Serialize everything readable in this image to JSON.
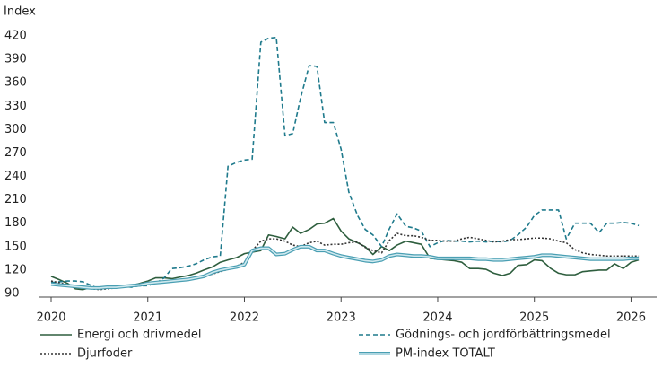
{
  "chart_data": {
    "type": "line",
    "y_label": "Index",
    "xlim": [
      2020,
      2026.2
    ],
    "xticks": [
      2020,
      2021,
      2022,
      2023,
      2024,
      2025,
      2026
    ],
    "ylim": [
      90,
      420
    ],
    "yticks": [
      90,
      120,
      150,
      180,
      210,
      240,
      270,
      300,
      330,
      360,
      390,
      420
    ],
    "grid": false,
    "legend": "bottom",
    "x": [
      2020,
      2020.08,
      2020.17,
      2020.25,
      2020.33,
      2020.42,
      2020.5,
      2020.58,
      2020.67,
      2020.75,
      2020.83,
      2020.92,
      2021,
      2021.08,
      2021.17,
      2021.25,
      2021.33,
      2021.42,
      2021.5,
      2021.58,
      2021.67,
      2021.75,
      2021.83,
      2021.92,
      2022,
      2022.08,
      2022.17,
      2022.25,
      2022.33,
      2022.42,
      2022.5,
      2022.58,
      2022.67,
      2022.75,
      2022.83,
      2022.92,
      2023,
      2023.08,
      2023.17,
      2023.25,
      2023.33,
      2023.42,
      2023.5,
      2023.58,
      2023.67,
      2023.75,
      2023.83,
      2023.92,
      2024,
      2024.08,
      2024.17,
      2024.25,
      2024.33,
      2024.42,
      2024.5,
      2024.58,
      2024.67,
      2024.75,
      2024.83,
      2024.92,
      2025,
      2025.08,
      2025.17,
      2025.25,
      2025.33,
      2025.42,
      2025.5,
      2025.58,
      2025.67,
      2025.75,
      2025.83,
      2025.92,
      2026,
      2026.08
    ],
    "series": [
      {
        "name": "Energi och drivmedel",
        "color": "#2e5e3e",
        "dash": "solid",
        "values": [
          112,
          108,
          103,
          96,
          95,
          98,
          97,
          98,
          97,
          99,
          100,
          103,
          106,
          110,
          110,
          109,
          111,
          113,
          116,
          120,
          124,
          130,
          133,
          136,
          141,
          143,
          145,
          165,
          163,
          160,
          175,
          167,
          172,
          179,
          180,
          186,
          170,
          160,
          155,
          150,
          140,
          150,
          145,
          152,
          157,
          155,
          153,
          135,
          134,
          133,
          132,
          130,
          122,
          122,
          121,
          116,
          113,
          116,
          126,
          127,
          133,
          132,
          122,
          116,
          114,
          114,
          118,
          119,
          120,
          120,
          128,
          122,
          130,
          133
        ]
      },
      {
        "name": "Gödnings- och jordförbättringsmedel",
        "color": "#1f7a8c",
        "dash": "dashed",
        "values": [
          104,
          105,
          106,
          106,
          105,
          100,
          96,
          97,
          98,
          99,
          98,
          100,
          100,
          103,
          110,
          122,
          123,
          125,
          128,
          133,
          137,
          138,
          253,
          258,
          261,
          262,
          412,
          417,
          418,
          292,
          295,
          340,
          382,
          381,
          309,
          309,
          275,
          220,
          190,
          172,
          165,
          150,
          173,
          192,
          176,
          174,
          170,
          150,
          155,
          158,
          157,
          157,
          156,
          157,
          156,
          157,
          156,
          158,
          165,
          175,
          190,
          197,
          197,
          197,
          160,
          180,
          180,
          180,
          168,
          180,
          180,
          181,
          180,
          177
        ]
      },
      {
        "name": "Djurfoder",
        "color": "#333333",
        "dash": "dotted",
        "values": [
          106,
          104,
          101,
          100,
          98,
          96,
          95,
          96,
          97,
          98,
          99,
          100,
          103,
          104,
          105,
          106,
          107,
          108,
          110,
          112,
          115,
          118,
          121,
          125,
          130,
          145,
          157,
          160,
          160,
          157,
          152,
          150,
          155,
          157,
          152,
          153,
          153,
          155,
          156,
          149,
          145,
          142,
          158,
          167,
          164,
          164,
          162,
          158,
          158,
          157,
          157,
          160,
          162,
          160,
          158,
          156,
          157,
          159,
          159,
          160,
          161,
          161,
          160,
          157,
          155,
          146,
          142,
          140,
          139,
          138,
          138,
          138,
          138,
          138
        ]
      },
      {
        "name": "PM-index TOTALT",
        "color": "#4a9fb3",
        "dash": "double",
        "values": [
          102,
          101,
          100,
          99,
          98,
          97,
          97,
          98,
          98,
          99,
          100,
          101,
          103,
          104,
          105,
          106,
          107,
          108,
          110,
          112,
          117,
          120,
          122,
          124,
          127,
          145,
          148,
          148,
          140,
          141,
          146,
          150,
          150,
          145,
          145,
          141,
          138,
          136,
          134,
          132,
          131,
          133,
          138,
          140,
          139,
          138,
          138,
          137,
          135,
          135,
          135,
          135,
          135,
          134,
          134,
          133,
          133,
          134,
          135,
          136,
          137,
          139,
          139,
          138,
          137,
          136,
          135,
          134,
          134,
          134,
          134,
          134,
          135,
          135
        ]
      }
    ]
  }
}
